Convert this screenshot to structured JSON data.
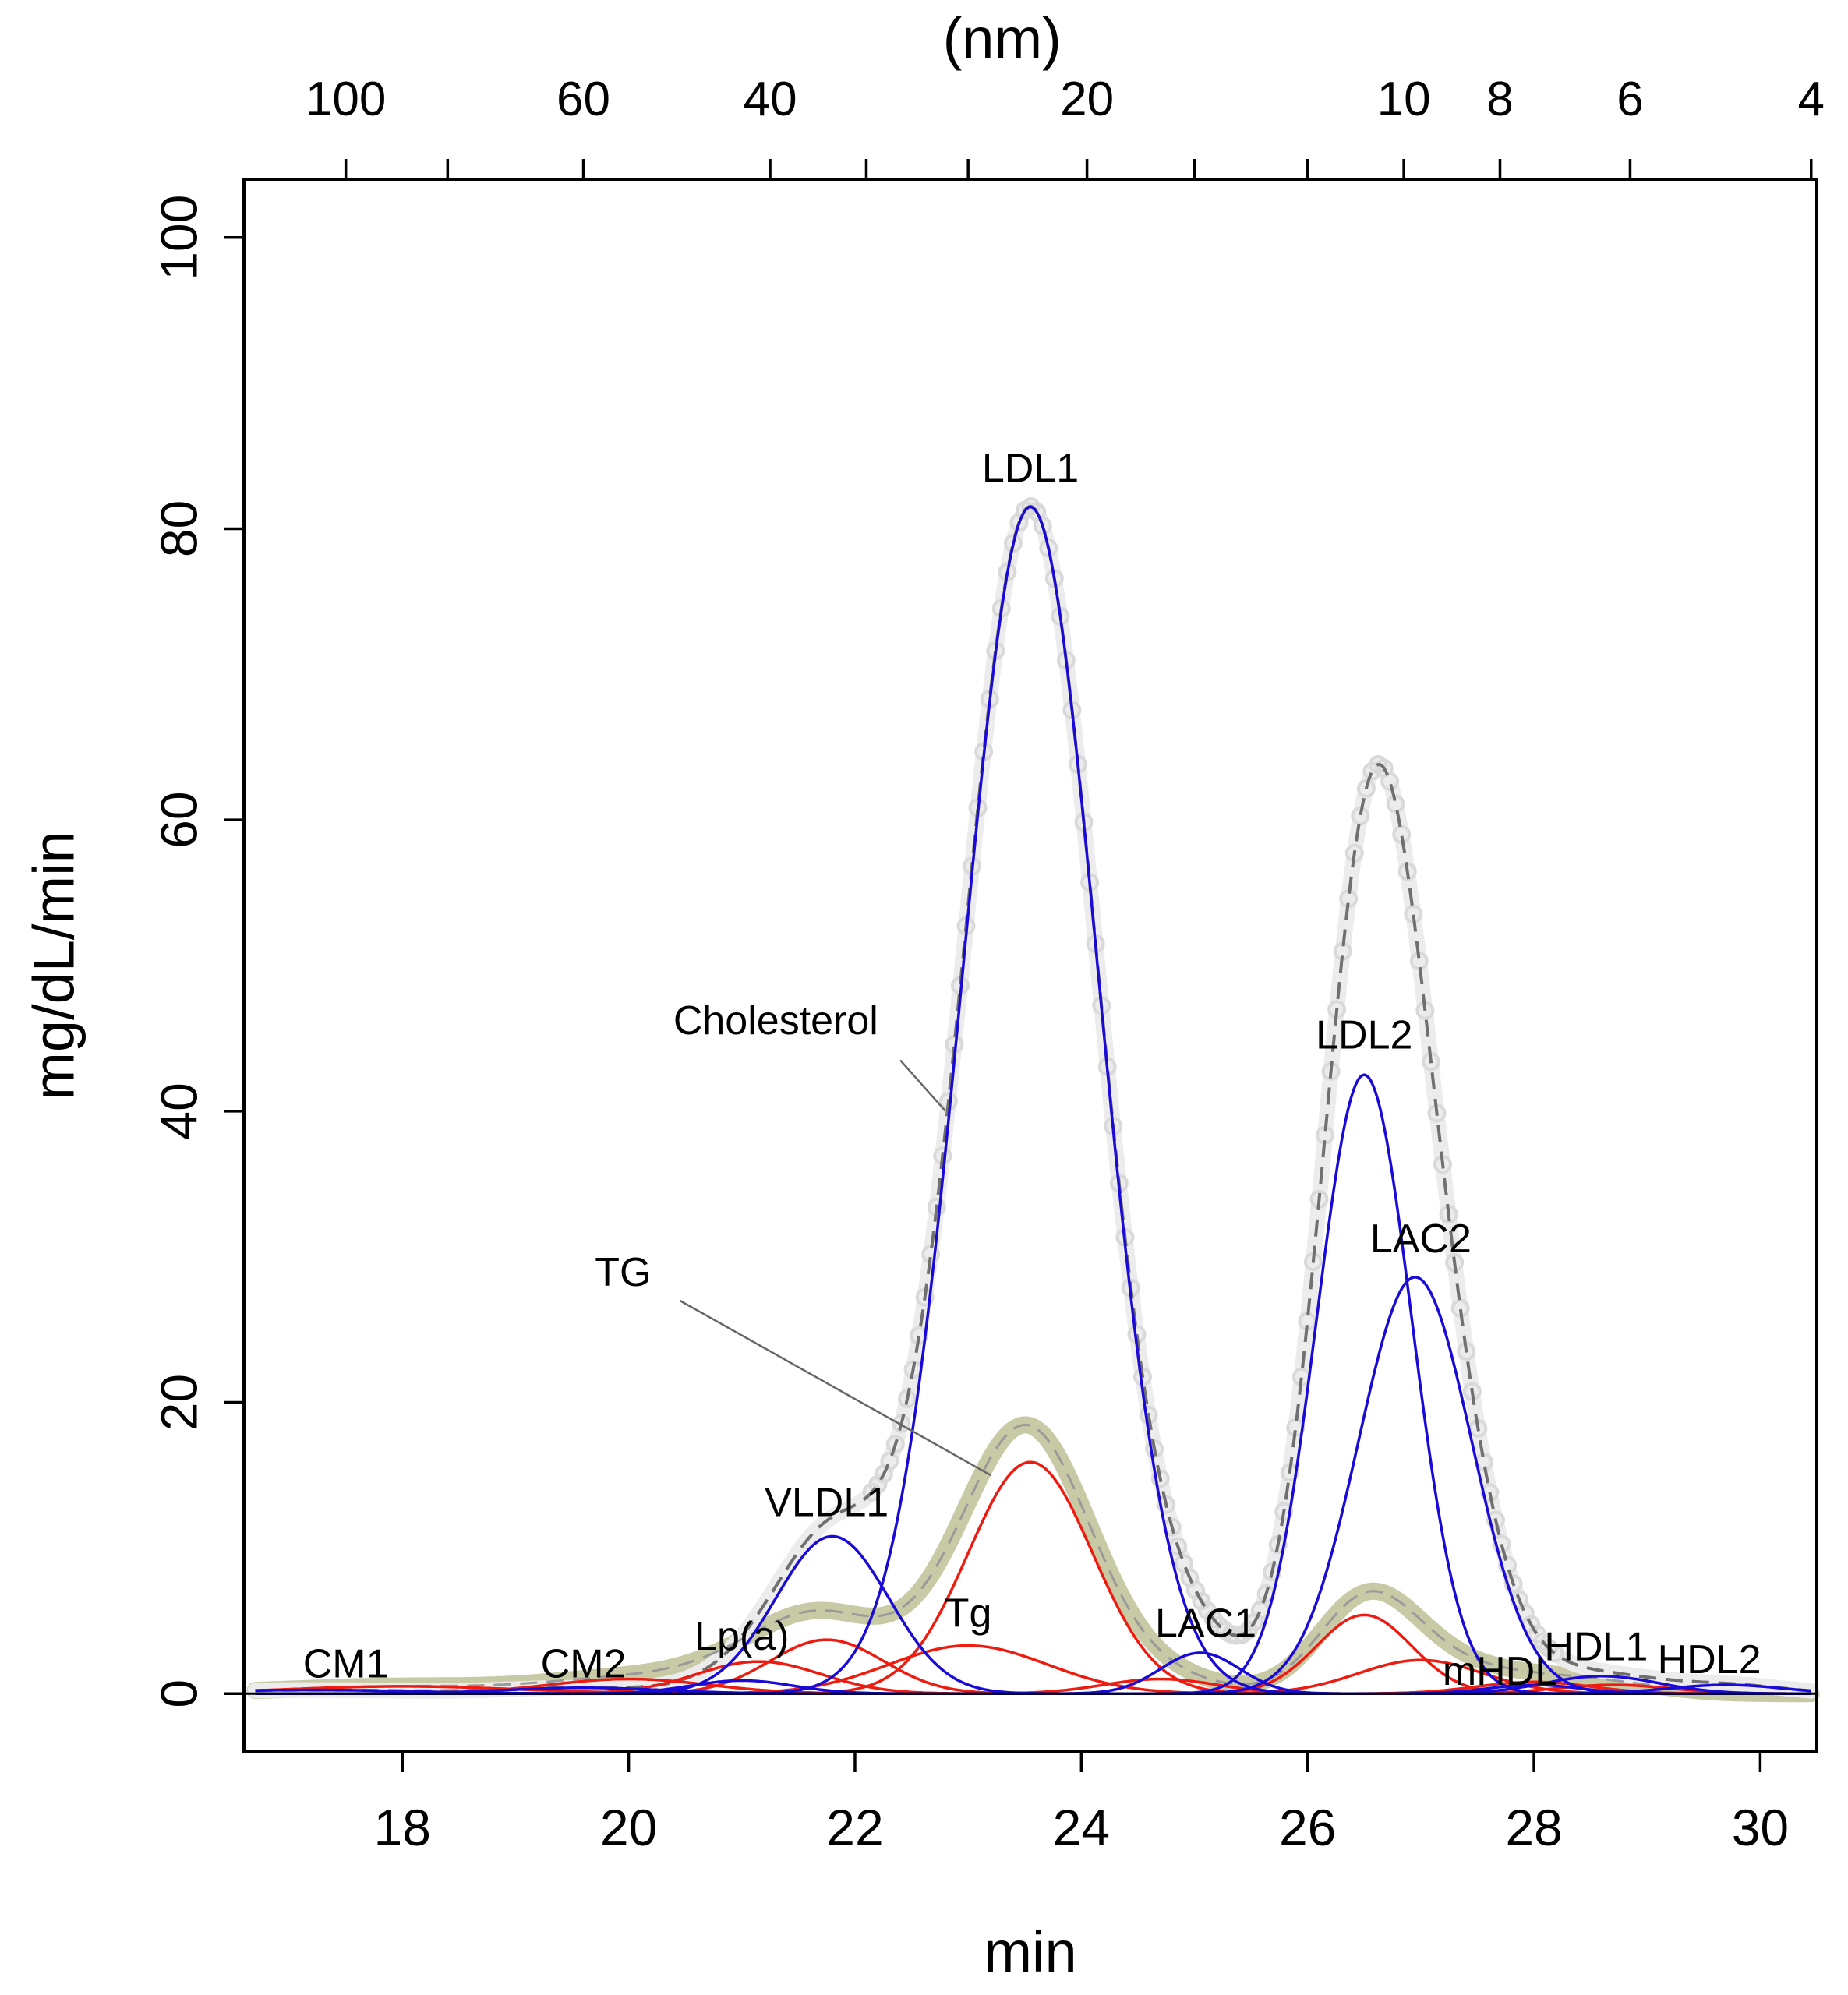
{
  "chart_data": {
    "type": "line",
    "xlabel": "min",
    "ylabel": "mg/dL/min",
    "top_axis_label": "(nm)",
    "xlim": [
      16.6,
      30.5
    ],
    "ylim": [
      -4,
      104
    ],
    "x_ticks": [
      18,
      20,
      22,
      24,
      26,
      28,
      30
    ],
    "y_ticks": [
      0,
      20,
      40,
      60,
      80,
      100
    ],
    "top_ticks": [
      {
        "label": "100",
        "min": 17.5
      },
      {
        "label": "",
        "min": 18.4
      },
      {
        "label": "60",
        "min": 19.6
      },
      {
        "label": "40",
        "min": 21.25
      },
      {
        "label": "",
        "min": 22.1
      },
      {
        "label": "",
        "min": 23.0
      },
      {
        "label": "20",
        "min": 24.05
      },
      {
        "label": "",
        "min": 25.0
      },
      {
        "label": "",
        "min": 26.0
      },
      {
        "label": "10",
        "min": 26.85
      },
      {
        "label": "8",
        "min": 27.7
      },
      {
        "label": "6",
        "min": 28.85
      },
      {
        "label": "4",
        "min": 30.45
      }
    ],
    "colors": {
      "cholesterol_components": "#1a0ad8",
      "tg_components": "#ee1c10",
      "observed_cholesterol": "#d9d9d9",
      "observed_tg": "#c8c9a5",
      "fitted_total": "#707070",
      "leader": "#666666"
    },
    "cholesterol_components": [
      {
        "name": "CM1",
        "center": 17.2,
        "height": 0.25,
        "sd": 0.9
      },
      {
        "name": "CM2",
        "center": 19.6,
        "height": 0.4,
        "sd": 0.7
      },
      {
        "name": "Lp(a)",
        "center": 21.0,
        "height": 0.9,
        "sd": 0.45
      },
      {
        "name": "VLDL1",
        "center": 21.8,
        "height": 10.8,
        "sd": 0.5
      },
      {
        "name": "LDL1",
        "center": 23.55,
        "height": 81.5,
        "sd": 0.6
      },
      {
        "name": "LAC1",
        "center": 25.05,
        "height": 2.8,
        "sd": 0.35
      },
      {
        "name": "LDL2",
        "center": 26.5,
        "height": 42.5,
        "sd": 0.42
      },
      {
        "name": "LAC2",
        "center": 26.95,
        "height": 28.6,
        "sd": 0.5
      },
      {
        "name": "mHDL",
        "center": 28.0,
        "height": 0.6,
        "sd": 0.4
      },
      {
        "name": "HDL1",
        "center": 28.6,
        "height": 1.2,
        "sd": 0.5
      },
      {
        "name": "HDL2",
        "center": 29.7,
        "height": 0.6,
        "sd": 0.5
      }
    ],
    "tg_components": [
      {
        "name": "CM1",
        "center": 18.0,
        "height": 0.5,
        "sd": 1.0
      },
      {
        "name": "CM2",
        "center": 20.0,
        "height": 1.0,
        "sd": 0.7
      },
      {
        "name": "Lp(a)",
        "center": 21.15,
        "height": 2.2,
        "sd": 0.55
      },
      {
        "name": "VLDL1",
        "center": 21.75,
        "height": 3.7,
        "sd": 0.5
      },
      {
        "name": "Tg",
        "center": 23.0,
        "height": 3.3,
        "sd": 0.7
      },
      {
        "name": "LDL1",
        "center": 23.55,
        "height": 15.9,
        "sd": 0.55
      },
      {
        "name": "LAC1",
        "center": 24.7,
        "height": 1.0,
        "sd": 0.5
      },
      {
        "name": "LDL2",
        "center": 26.5,
        "height": 5.4,
        "sd": 0.42
      },
      {
        "name": "LAC2",
        "center": 27.0,
        "height": 2.3,
        "sd": 0.55
      },
      {
        "name": "mHDL",
        "center": 28.0,
        "height": 0.8,
        "sd": 0.5
      },
      {
        "name": "HDL1",
        "center": 28.7,
        "height": 0.6,
        "sd": 0.5
      }
    ],
    "annotations": [
      {
        "text": "LDL1",
        "x": 23.55,
        "y": 83.2
      },
      {
        "text": "LDL2",
        "x": 26.5,
        "y": 44.3
      },
      {
        "text": "LAC2",
        "x": 27.0,
        "y": 30.3
      },
      {
        "text": "VLDL1",
        "x": 21.75,
        "y": 12.2
      },
      {
        "text": "Tg",
        "x": 23.0,
        "y": 4.6
      },
      {
        "text": "LAC1",
        "x": 25.1,
        "y": 3.9
      },
      {
        "text": "Lp(a)",
        "x": 21.0,
        "y": 3.0
      },
      {
        "text": "CM1",
        "x": 17.5,
        "y": 1.1
      },
      {
        "text": "CM2",
        "x": 19.6,
        "y": 1.1
      },
      {
        "text": "mHDL",
        "x": 27.7,
        "y": 0.6
      },
      {
        "text": "HDL1",
        "x": 28.55,
        "y": 2.3
      },
      {
        "text": "HDL2",
        "x": 29.55,
        "y": 1.4
      },
      {
        "text": "Cholesterol",
        "x": 21.3,
        "y": 45.3
      },
      {
        "text": "TG",
        "x": 19.95,
        "y": 28.0
      }
    ],
    "leaders": [
      {
        "label": "Cholesterol",
        "from": [
          22.4,
          43.5
        ],
        "to": [
          22.8,
          40.0
        ]
      },
      {
        "label": "TG",
        "from": [
          20.45,
          27.0
        ],
        "to": [
          23.2,
          15.0
        ]
      }
    ]
  }
}
